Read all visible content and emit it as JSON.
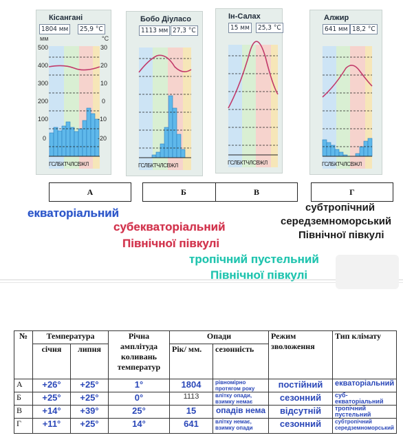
{
  "charts": [
    {
      "name": "Кісангані",
      "precip": "1804 мм",
      "temp": "25,9 °C",
      "id": "A"
    },
    {
      "name": "Бобо Діуласо",
      "precip": "1113 мм",
      "temp": "27,3 °C",
      "id": "B"
    },
    {
      "name": "Ін-Салах",
      "precip": "15 мм",
      "temp": "25,3 °C",
      "id": "V"
    },
    {
      "name": "Алжир",
      "precip": "641 мм",
      "temp": "18,2 °C",
      "id": "G"
    }
  ],
  "axis": {
    "mm_unit": "мм",
    "deg_unit": "°C",
    "left_ticks": [
      "500",
      "400",
      "300",
      "200",
      "100",
      "0"
    ],
    "right_ticks": [
      "30",
      "20",
      "10",
      "0",
      "-10",
      "-20"
    ],
    "months": "ГСЛБКТЧЛСВЖЛ"
  },
  "letters": [
    "А",
    "Б",
    "В",
    "Г"
  ],
  "annotations": {
    "a": "екваторіальний",
    "b1": "субекваторіальний",
    "b2": "Північної півкулі",
    "v1": "тропічний пустельний",
    "v2": "Північної півкулі",
    "g1": "субтропічний",
    "g2": "середземноморський",
    "g3": "Північної півкулі"
  },
  "table": {
    "headers": {
      "num": "№",
      "temp": "Температура",
      "jan": "січня",
      "jul": "липня",
      "amp": "Річна амплітуда коливань температур",
      "precip": "Опади",
      "year": "Рік/ мм.",
      "season": "сезонність",
      "regime": "Режим зволоження",
      "type": "Тип клімату"
    },
    "rows": [
      {
        "id": "А",
        "jan": "+26°",
        "jul": "+25°",
        "amp": "1°",
        "year": "1804",
        "season": "рівномірно протягом року",
        "regime": "постійний",
        "type": "екваторіальний"
      },
      {
        "id": "Б",
        "jan": "+25°",
        "jul": "+25°",
        "amp": "0°",
        "year": "1113",
        "season": "влітку опади, взимку немає",
        "regime": "сезонний",
        "type": "суб- екваторіальний"
      },
      {
        "id": "В",
        "jan": "+14°",
        "jul": "+39°",
        "amp": "25°",
        "year": "15",
        "season": "опадів нема",
        "regime": "відсутній",
        "type": "тропічний пустельний"
      },
      {
        "id": "Г",
        "jan": "+11°",
        "jul": "+25°",
        "amp": "14°",
        "year": "641",
        "season": "влітку немає, взимку опади",
        "regime": "сезонний",
        "type": "субтропічний середземноморський"
      }
    ]
  }
}
